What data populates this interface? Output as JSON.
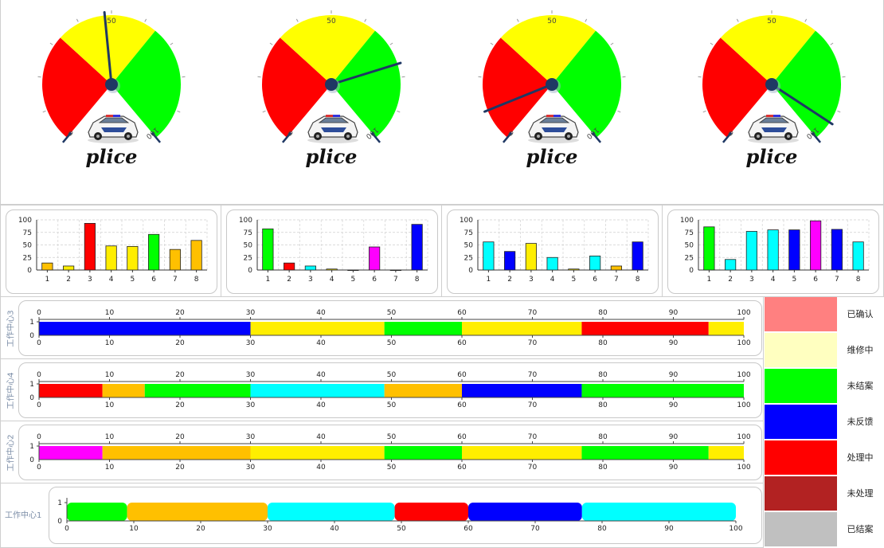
{
  "colors": {
    "red": "#ff0000",
    "yellow": "#ffff00",
    "green": "#00ff00",
    "blue": "#0000ff",
    "cyan": "#00ffff",
    "orange": "#ffc000",
    "gold": "#ffee00",
    "magenta": "#ff00ff",
    "pink": "#ff8080",
    "cream": "#ffffc0",
    "darkred": "#b22222",
    "gray": "#c0c0c0",
    "needle": "#1f3864"
  },
  "gauges": [
    {
      "label": "plice",
      "needle_value": 48,
      "ticks": [
        "0",
        "50",
        "100"
      ],
      "car_icon": "police-car-icon"
    },
    {
      "label": "plice",
      "needle_value": 76,
      "ticks": [
        "0",
        "50",
        "100"
      ],
      "car_icon": "police-car-icon"
    },
    {
      "label": "plice",
      "needle_value": 10,
      "ticks": [
        "0",
        "50",
        "100"
      ],
      "car_icon": "police-car-icon"
    },
    {
      "label": "plice",
      "needle_value": 94,
      "ticks": [
        "0",
        "50",
        "100"
      ],
      "car_icon": "police-car-icon"
    }
  ],
  "chart_data": [
    {
      "type": "bar",
      "categories": [
        "1",
        "2",
        "3",
        "4",
        "5",
        "6",
        "7",
        "8"
      ],
      "values": [
        14,
        8,
        93,
        48,
        47,
        71,
        41,
        59
      ],
      "colors": [
        "orange",
        "gold",
        "red",
        "gold",
        "gold",
        "green",
        "orange",
        "orange"
      ],
      "ylim": [
        0,
        100
      ],
      "yticks": [
        "0",
        "25",
        "50",
        "75",
        "100"
      ],
      "grid": true
    },
    {
      "type": "bar",
      "categories": [
        "1",
        "2",
        "3",
        "4",
        "5",
        "6",
        "7",
        "8"
      ],
      "values": [
        82,
        14,
        8,
        2,
        0,
        46,
        0,
        91
      ],
      "colors": [
        "green",
        "red",
        "cyan",
        "gold",
        "gold",
        "magenta",
        "gold",
        "blue"
      ],
      "ylim": [
        0,
        100
      ],
      "yticks": [
        "0",
        "25",
        "50",
        "75",
        "100"
      ],
      "grid": true
    },
    {
      "type": "bar",
      "categories": [
        "1",
        "2",
        "3",
        "4",
        "5",
        "6",
        "7",
        "8"
      ],
      "values": [
        56,
        37,
        53,
        25,
        2,
        28,
        8,
        56
      ],
      "colors": [
        "cyan",
        "blue",
        "gold",
        "cyan",
        "gold",
        "cyan",
        "orange",
        "blue"
      ],
      "ylim": [
        0,
        100
      ],
      "yticks": [
        "0",
        "25",
        "50",
        "75",
        "100"
      ],
      "grid": true
    },
    {
      "type": "bar",
      "categories": [
        "1",
        "2",
        "3",
        "4",
        "5",
        "6",
        "7",
        "8"
      ],
      "values": [
        86,
        21,
        77,
        80,
        80,
        98,
        81,
        56
      ],
      "colors": [
        "green",
        "cyan",
        "cyan",
        "cyan",
        "blue",
        "magenta",
        "blue",
        "cyan"
      ],
      "ylim": [
        0,
        100
      ],
      "yticks": [
        "0",
        "25",
        "50",
        "75",
        "100"
      ],
      "grid": true
    },
    {
      "type": "gantt",
      "row_label": "工作中心3",
      "xlim": [
        0,
        100
      ],
      "xticks": [
        "0",
        "10",
        "20",
        "30",
        "40",
        "50",
        "60",
        "70",
        "80",
        "90",
        "100"
      ],
      "yticks": [
        "0",
        "1"
      ],
      "segments": [
        {
          "start": 0,
          "end": 30,
          "color": "blue"
        },
        {
          "start": 30,
          "end": 49,
          "color": "gold"
        },
        {
          "start": 49,
          "end": 60,
          "color": "green"
        },
        {
          "start": 60,
          "end": 77,
          "color": "gold"
        },
        {
          "start": 77,
          "end": 95,
          "color": "red"
        },
        {
          "start": 95,
          "end": 100,
          "color": "gold"
        }
      ]
    },
    {
      "type": "gantt",
      "row_label": "工作中心4",
      "xlim": [
        0,
        100
      ],
      "xticks": [
        "0",
        "10",
        "20",
        "30",
        "40",
        "50",
        "60",
        "70",
        "80",
        "90",
        "100"
      ],
      "yticks": [
        "0",
        "1"
      ],
      "segments": [
        {
          "start": 0,
          "end": 9,
          "color": "red"
        },
        {
          "start": 9,
          "end": 15,
          "color": "orange"
        },
        {
          "start": 15,
          "end": 30,
          "color": "green"
        },
        {
          "start": 30,
          "end": 49,
          "color": "cyan"
        },
        {
          "start": 49,
          "end": 60,
          "color": "orange"
        },
        {
          "start": 60,
          "end": 77,
          "color": "blue"
        },
        {
          "start": 77,
          "end": 100,
          "color": "green"
        }
      ]
    },
    {
      "type": "gantt",
      "row_label": "工作中心2",
      "xlim": [
        0,
        100
      ],
      "xticks": [
        "0",
        "10",
        "20",
        "30",
        "40",
        "50",
        "60",
        "70",
        "80",
        "90",
        "100"
      ],
      "yticks": [
        "0",
        "1"
      ],
      "segments": [
        {
          "start": 0,
          "end": 9,
          "color": "magenta"
        },
        {
          "start": 9,
          "end": 30,
          "color": "orange"
        },
        {
          "start": 30,
          "end": 49,
          "color": "gold"
        },
        {
          "start": 49,
          "end": 60,
          "color": "green"
        },
        {
          "start": 60,
          "end": 77,
          "color": "gold"
        },
        {
          "start": 77,
          "end": 95,
          "color": "green"
        },
        {
          "start": 95,
          "end": 100,
          "color": "gold"
        }
      ]
    },
    {
      "type": "gantt",
      "row_label": "工作中心1",
      "xlim": [
        0,
        100
      ],
      "xticks": [
        "0",
        "10",
        "20",
        "30",
        "40",
        "50",
        "60",
        "70",
        "80",
        "90",
        "100"
      ],
      "yticks": [
        "0",
        "1"
      ],
      "rounded": true,
      "segments": [
        {
          "start": 0,
          "end": 9,
          "color": "green"
        },
        {
          "start": 9,
          "end": 30,
          "color": "orange"
        },
        {
          "start": 30,
          "end": 49,
          "color": "cyan"
        },
        {
          "start": 49,
          "end": 60,
          "color": "red"
        },
        {
          "start": 60,
          "end": 77,
          "color": "blue"
        },
        {
          "start": 77,
          "end": 100,
          "color": "cyan"
        }
      ]
    }
  ],
  "legend": [
    {
      "label": "已确认",
      "color": "pink"
    },
    {
      "label": "维修中",
      "color": "cream"
    },
    {
      "label": "未结案",
      "color": "green"
    },
    {
      "label": "未反馈",
      "color": "blue"
    },
    {
      "label": "处理中",
      "color": "red"
    },
    {
      "label": "未处理",
      "color": "darkred"
    },
    {
      "label": "已结案",
      "color": "gray"
    }
  ]
}
